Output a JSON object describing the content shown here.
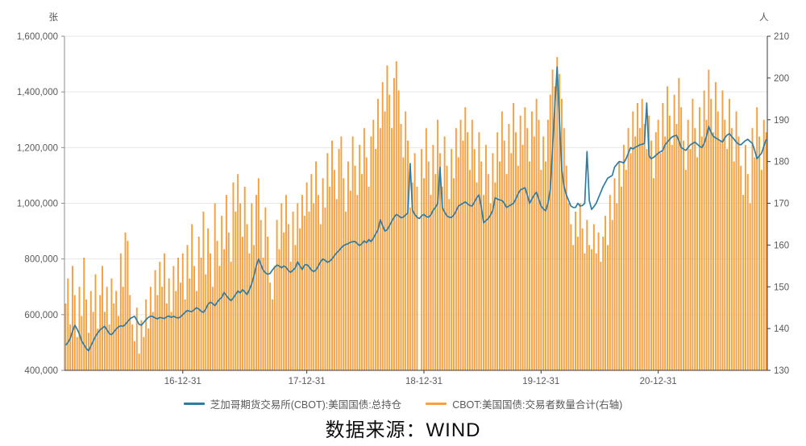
{
  "caption": {
    "text": "数据来源：WIND"
  },
  "colors": {
    "line": "#2e7ca3",
    "bar": "#f5a142",
    "grid": "#e7e7e7",
    "axis_left": "#8c8c8c",
    "axis_dark": "#3a3a3a",
    "tick_text": "#595959"
  },
  "chart_data": {
    "type": "bar",
    "subtype": "combo bar+line, dual axis",
    "title": "",
    "unit_left": "张",
    "unit_right": "人",
    "n_points": 306,
    "left_axis": {
      "min": 400000,
      "max": 1600000,
      "tick_labels": [
        "400,000",
        "600,000",
        "800,000",
        "1,000,000",
        "1,200,000",
        "1,400,000",
        "1,600,000"
      ],
      "tick_values_thousands": [
        400,
        600,
        800,
        1000,
        1200,
        1400,
        1600
      ]
    },
    "right_axis": {
      "min": 130,
      "max": 210,
      "tick_values": [
        130,
        140,
        150,
        160,
        170,
        180,
        190,
        200,
        210
      ]
    },
    "x_ticks": [
      {
        "label": "16-12-31",
        "index": 51
      },
      {
        "label": "17-12-31",
        "index": 105
      },
      {
        "label": "18-12-31",
        "index": 156
      },
      {
        "label": "19-12-31",
        "index": 207
      },
      {
        "label": "20-12-31",
        "index": 258
      }
    ],
    "legend_position": "bottom",
    "grid": "horizontal only",
    "series": [
      {
        "name": "芝加哥期货交易所(CBOT):美国国债:总持仓",
        "type": "line",
        "axis": "left",
        "color": "#2e7ca3",
        "values_unit": "contracts, thousands",
        "values": [
          490,
          500,
          515,
          540,
          562,
          548,
          530,
          505,
          492,
          478,
          470,
          488,
          505,
          522,
          535,
          545,
          552,
          558,
          545,
          532,
          528,
          538,
          548,
          556,
          560,
          558,
          565,
          575,
          585,
          590,
          594,
          580,
          565,
          562,
          572,
          582,
          590,
          595,
          593,
          588,
          585,
          590,
          588,
          586,
          592,
          595,
          590,
          594,
          590,
          588,
          592,
          600,
          608,
          615,
          612,
          611,
          618,
          625,
          620,
          612,
          608,
          620,
          637,
          645,
          640,
          632,
          645,
          655,
          662,
          680,
          668,
          658,
          650,
          660,
          672,
          685,
          678,
          690,
          682,
          672,
          690,
          710,
          740,
          775,
          800,
          780,
          760,
          750,
          745,
          748,
          760,
          770,
          778,
          775,
          768,
          775,
          770,
          758,
          752,
          760,
          768,
          790,
          775,
          762,
          778,
          780,
          772,
          760,
          755,
          760,
          775,
          790,
          800,
          795,
          788,
          792,
          800,
          812,
          822,
          830,
          840,
          848,
          852,
          855,
          860,
          862,
          863,
          855,
          848,
          855,
          865,
          858,
          870,
          862,
          875,
          890,
          905,
          941,
          920,
          900,
          905,
          920,
          935,
          950,
          960,
          955,
          948,
          950,
          958,
          965,
          1143,
          975,
          960,
          950,
          945,
          955,
          960,
          952,
          950,
          958,
          975,
          985,
          1000,
          1129,
          985,
          968,
          955,
          950,
          949,
          958,
          972,
          990,
          995,
          1000,
          1005,
          998,
          992,
          990,
          1005,
          1020,
          1030,
          985,
          930,
          938,
          945,
          958,
          975,
          1020,
          1015,
          1012,
          1010,
          1000,
          985,
          990,
          995,
          1000,
          1015,
          1035,
          1048,
          1052,
          1056,
          1030,
          1000,
          1015,
          1030,
          1040,
          1015,
          990,
          980,
          973,
          1000,
          1050,
          1200,
          1350,
          1490,
          1300,
          1120,
          1060,
          1030,
          1010,
          990,
          985,
          985,
          1000,
          990,
          992,
          1000,
          1186,
          1010,
          978,
          988,
          1000,
          1020,
          1040,
          1060,
          1075,
          1090,
          1095,
          1100,
          1130,
          1140,
          1150,
          1148,
          1145,
          1160,
          1180,
          1200,
          1195,
          1201,
          1205,
          1210,
          1212,
          1215,
          1360,
          1170,
          1160,
          1165,
          1172,
          1180,
          1185,
          1190,
          1210,
          1220,
          1230,
          1238,
          1242,
          1244,
          1225,
          1200,
          1195,
          1190,
          1200,
          1210,
          1215,
          1220,
          1212,
          1205,
          1200,
          1215,
          1240,
          1276,
          1255,
          1240,
          1235,
          1230,
          1225,
          1220,
          1235,
          1245,
          1250,
          1240,
          1230,
          1220,
          1212,
          1210,
          1218,
          1225,
          1230,
          1222,
          1215,
          1190,
          1160,
          1170,
          1180,
          1205,
          1230
        ]
      },
      {
        "name": "CBOT:美国国债:交易者数量合计(右轴)",
        "type": "bar",
        "axis": "right",
        "color": "#f5a142",
        "values_unit": "persons",
        "values": [
          146,
          152,
          141,
          155,
          148,
          138,
          150,
          143,
          157,
          147,
          139,
          149,
          144,
          153,
          140,
          148,
          155,
          144,
          150,
          141,
          152,
          146,
          149,
          143,
          158,
          150,
          163,
          161,
          148,
          141,
          137,
          145,
          134,
          142,
          138,
          147,
          140,
          150,
          144,
          154,
          148,
          156,
          150,
          158,
          146,
          152,
          144,
          155,
          149,
          157,
          151,
          158,
          147,
          160,
          152,
          165,
          155,
          149,
          162,
          157,
          168,
          153,
          164,
          158,
          150,
          170,
          161,
          155,
          167,
          159,
          172,
          163,
          156,
          175,
          168,
          177,
          170,
          162,
          174,
          165,
          158,
          170,
          160,
          172,
          176,
          166,
          157,
          169,
          162,
          151,
          147,
          155,
          166,
          159,
          170,
          163,
          172,
          165,
          156,
          168,
          160,
          170,
          164,
          172,
          167,
          175,
          168,
          177,
          170,
          180,
          172,
          165,
          176,
          169,
          182,
          174,
          185,
          178,
          171,
          183,
          186,
          176,
          168,
          180,
          173,
          186,
          179,
          172,
          184,
          177,
          188,
          181,
          174,
          186,
          190,
          183,
          195,
          188,
          199,
          192,
          203,
          196,
          188,
          200,
          204,
          197,
          189,
          181,
          192,
          185,
          169,
          175,
          182,
          174,
          null,
          183,
          176,
          188,
          180,
          172,
          184,
          177,
          190,
          182,
          174,
          186,
          179,
          171,
          183,
          176,
          188,
          181,
          190,
          185,
          193,
          187,
          178,
          190,
          183,
          175,
          187,
          180,
          172,
          184,
          177,
          170,
          182,
          175,
          187,
          180,
          192,
          185,
          177,
          189,
          182,
          194,
          187,
          179,
          191,
          184,
          193,
          188,
          180,
          192,
          186,
          195,
          190,
          178,
          186,
          180,
          190,
          196,
          202,
          198,
          205,
          201,
          195,
          188,
          179,
          170,
          165,
          160,
          168,
          162,
          170,
          164,
          158,
          166,
          160,
          159,
          165,
          158,
          163,
          156,
          162,
          167,
          160,
          172,
          166,
          176,
          170,
          180,
          174,
          184,
          178,
          188,
          182,
          192,
          186,
          194,
          188,
          195,
          189,
          183,
          191,
          185,
          176,
          187,
          190,
          182,
          194,
          186,
          198,
          191,
          184,
          196,
          189,
          200,
          193,
          185,
          178,
          190,
          183,
          195,
          188,
          181,
          193,
          186,
          197,
          190,
          202,
          195,
          187,
          199,
          192,
          185,
          197,
          190,
          183,
          195,
          188,
          180,
          192,
          186,
          179,
          172,
          184,
          177,
          170,
          188,
          181,
          193,
          186,
          178,
          190,
          187
        ]
      }
    ]
  }
}
